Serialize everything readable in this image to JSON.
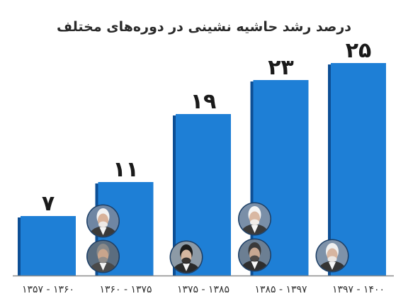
{
  "chart_data": {
    "type": "bar",
    "title": "درصد رشد حاشیه نشینی در دوره‌های مختلف",
    "categories": [
      "۱۳۵۷ - ۱۳۶۰",
      "۱۳۶۰ - ۱۳۷۵",
      "۱۳۷۵ - ۱۳۸۵",
      "۱۳۸۵ - ۱۳۹۷",
      "۱۳۹۷ - ۱۴۰۰"
    ],
    "values": [
      7,
      11,
      19,
      23,
      25
    ],
    "value_labels": [
      "۷",
      "۱۱",
      "۱۹",
      "۲۳",
      "۲۵"
    ],
    "ylim": [
      0,
      25
    ],
    "grid": false,
    "legend": "none",
    "colors": {
      "bar": "#1e7fd6",
      "bar_shadow": "#0d4f95",
      "baseline": "#8c8c8c",
      "text": "#1a1a1a"
    },
    "portraits": [
      {
        "category_index": 1,
        "icon": "portrait-avatar-icon"
      },
      {
        "category_index": 1,
        "icon": "portrait-avatar-icon"
      },
      {
        "category_index": 2,
        "icon": "portrait-avatar-icon"
      },
      {
        "category_index": 3,
        "icon": "portrait-avatar-icon"
      },
      {
        "category_index": 3,
        "icon": "portrait-avatar-icon"
      },
      {
        "category_index": 4,
        "icon": "portrait-avatar-icon"
      }
    ]
  }
}
